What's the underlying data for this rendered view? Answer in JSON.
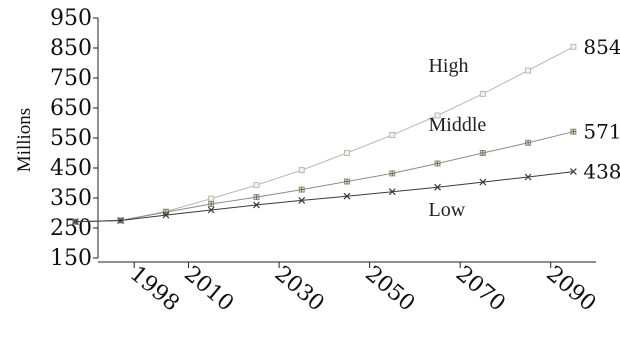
{
  "chart_data": {
    "type": "line",
    "title": "",
    "xlabel": "",
    "ylabel": "Millions",
    "ylim": [
      150,
      950
    ],
    "yticks": [
      "150",
      "250",
      "350",
      "450",
      "550",
      "650",
      "750",
      "850",
      "950"
    ],
    "xlim": [
      1990,
      2100
    ],
    "xticks": [
      "1998",
      "2010",
      "2030",
      "2050",
      "2070",
      "2090"
    ],
    "grid": false,
    "x": [
      1985,
      1995,
      2005,
      2015,
      2025,
      2035,
      2045,
      2055,
      2065,
      2075,
      2085,
      2095
    ],
    "series": [
      {
        "name": "High",
        "color": "#b9b9b4",
        "marker": "square",
        "values": [
          271,
          275,
          305,
          348,
          393,
          443,
          500,
          560,
          625,
          697,
          775,
          854
        ],
        "end_label": "854"
      },
      {
        "name": "Middle",
        "color": "#8d8d86",
        "marker": "square-plus",
        "values": [
          271,
          275,
          303,
          330,
          353,
          378,
          405,
          432,
          465,
          500,
          534,
          571
        ],
        "end_label": "571"
      },
      {
        "name": "Low",
        "color": "#3a3a3a",
        "marker": "x",
        "values": [
          271,
          275,
          293,
          310,
          327,
          342,
          356,
          371,
          386,
          403,
          420,
          438
        ],
        "end_label": "438"
      }
    ]
  }
}
